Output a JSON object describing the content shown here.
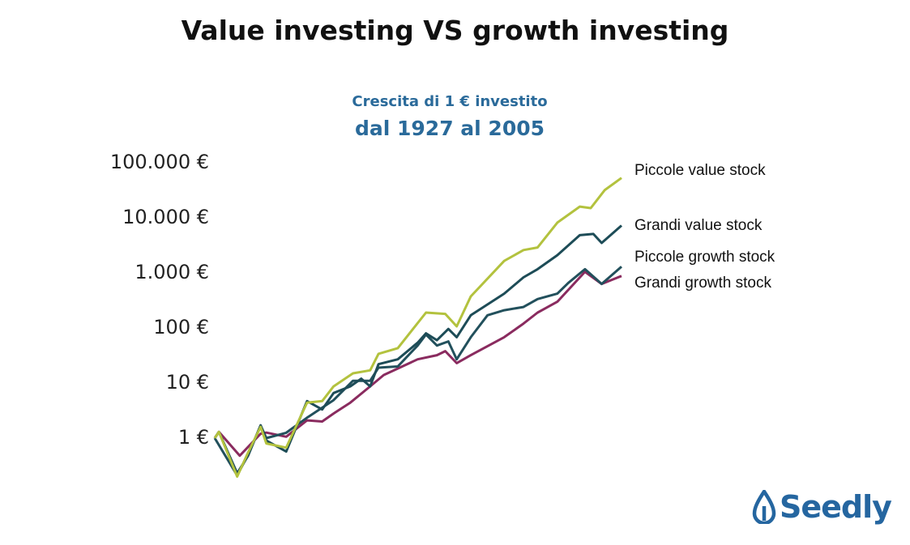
{
  "title": "Value investing VS growth investing",
  "logo_text": "Seedly",
  "chart_data": {
    "type": "line",
    "title": "Crescita di 1 € investito",
    "subtitle": "dal 1927 al 2005",
    "xlabel": "",
    "ylabel": "",
    "y_scale": "log",
    "xlim": [
      1927,
      2005
    ],
    "ylim": [
      0.2,
      100000
    ],
    "y_ticks": [
      {
        "value": 1,
        "label": "1 €"
      },
      {
        "value": 10,
        "label": "10 €"
      },
      {
        "value": 100,
        "label": "100 €"
      },
      {
        "value": 1000,
        "label": "1.000 €"
      },
      {
        "value": 10000,
        "label": "10.000 €"
      },
      {
        "value": 100000,
        "label": "100.000 €"
      }
    ],
    "grid": false,
    "legend": "end-of-line labels",
    "series": [
      {
        "name": "Piccole value stock",
        "color": "#b3c23e",
        "points": [
          [
            1927,
            1
          ],
          [
            1927.8,
            1.3
          ],
          [
            1931.3,
            0.2
          ],
          [
            1933.2,
            0.5
          ],
          [
            1935.8,
            1.6
          ],
          [
            1936.9,
            0.8
          ],
          [
            1940.7,
            0.67
          ],
          [
            1944.7,
            4.4
          ],
          [
            1947.6,
            4.7
          ],
          [
            1949.8,
            8.7
          ],
          [
            1953.5,
            15
          ],
          [
            1956.8,
            17
          ],
          [
            1958.4,
            34
          ],
          [
            1962.1,
            43
          ],
          [
            1967.5,
            190
          ],
          [
            1971.2,
            180
          ],
          [
            1973.4,
            107
          ],
          [
            1976.1,
            375
          ],
          [
            1982.5,
            1650
          ],
          [
            1986.2,
            2600
          ],
          [
            1988.9,
            2900
          ],
          [
            1992.7,
            8200
          ],
          [
            1997,
            16000
          ],
          [
            1999.1,
            15000
          ],
          [
            2001.8,
            32000
          ],
          [
            2005,
            53000
          ]
        ]
      },
      {
        "name": "Grandi value stock",
        "color": "#1d4c57",
        "points": [
          [
            1927,
            1
          ],
          [
            1927.8,
            1.3
          ],
          [
            1931.3,
            0.23
          ],
          [
            1933.4,
            0.48
          ],
          [
            1935.8,
            1.7
          ],
          [
            1936.9,
            0.9
          ],
          [
            1940.7,
            0.57
          ],
          [
            1944.7,
            4.7
          ],
          [
            1947.6,
            3.3
          ],
          [
            1949.8,
            6.6
          ],
          [
            1953,
            8.7
          ],
          [
            1955.1,
            12
          ],
          [
            1956.8,
            8.7
          ],
          [
            1958.4,
            22
          ],
          [
            1962.1,
            27
          ],
          [
            1965.9,
            54
          ],
          [
            1967.5,
            80
          ],
          [
            1969.6,
            60
          ],
          [
            1971.8,
            96
          ],
          [
            1973.4,
            68
          ],
          [
            1976.1,
            170
          ],
          [
            1982.5,
            420
          ],
          [
            1986.2,
            830
          ],
          [
            1988.9,
            1170
          ],
          [
            1992.7,
            2100
          ],
          [
            1997,
            4850
          ],
          [
            1999.6,
            5100
          ],
          [
            2001.2,
            3500
          ],
          [
            2005,
            7250
          ]
        ]
      },
      {
        "name": "Piccole growth stock",
        "color": "#22505c",
        "points": [
          [
            1927,
            1
          ],
          [
            1931.3,
            0.21
          ],
          [
            1933.4,
            0.5
          ],
          [
            1935.8,
            1.7
          ],
          [
            1936.9,
            1
          ],
          [
            1940.7,
            1.25
          ],
          [
            1944.7,
            2.35
          ],
          [
            1949.8,
            4.9
          ],
          [
            1953.5,
            11
          ],
          [
            1956.8,
            11
          ],
          [
            1958.4,
            19
          ],
          [
            1962.1,
            20
          ],
          [
            1965.9,
            48
          ],
          [
            1967.5,
            76
          ],
          [
            1969.6,
            48
          ],
          [
            1971.8,
            57
          ],
          [
            1973.4,
            27
          ],
          [
            1976.1,
            68
          ],
          [
            1979.3,
            170
          ],
          [
            1982.5,
            210
          ],
          [
            1986.2,
            240
          ],
          [
            1988.9,
            335
          ],
          [
            1992.7,
            420
          ],
          [
            1994.8,
            660
          ],
          [
            1998,
            1170
          ],
          [
            2001.2,
            630
          ],
          [
            2005,
            1300
          ]
        ]
      },
      {
        "name": "Grandi growth stock",
        "color": "#8a2b5f",
        "points": [
          [
            1927,
            1
          ],
          [
            1927.8,
            1.3
          ],
          [
            1931.8,
            0.48
          ],
          [
            1935.8,
            1.2
          ],
          [
            1936.9,
            1.26
          ],
          [
            1940.7,
            1.06
          ],
          [
            1944.7,
            2.1
          ],
          [
            1947.6,
            2
          ],
          [
            1949.8,
            2.8
          ],
          [
            1953,
            4.4
          ],
          [
            1956.8,
            8.7
          ],
          [
            1959.4,
            14
          ],
          [
            1965.9,
            27
          ],
          [
            1969.6,
            32
          ],
          [
            1971.2,
            38
          ],
          [
            1973.4,
            23
          ],
          [
            1976.1,
            32
          ],
          [
            1982.5,
            68
          ],
          [
            1986.2,
            120
          ],
          [
            1988.9,
            190
          ],
          [
            1992.7,
            300
          ],
          [
            1998,
            1050
          ],
          [
            2001.2,
            630
          ],
          [
            2005,
            880
          ]
        ]
      }
    ]
  }
}
